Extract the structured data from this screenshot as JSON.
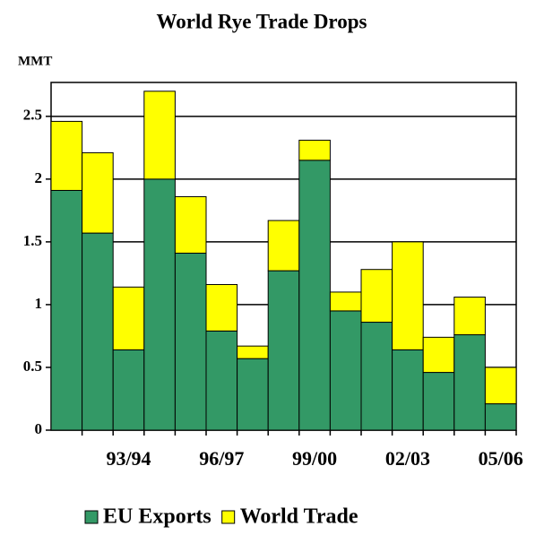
{
  "chart_data": {
    "type": "stacked-bar",
    "title": "World Rye Trade Drops",
    "y_label": "MMT",
    "categories": [
      null,
      null,
      "93/94",
      null,
      null,
      "96/97",
      null,
      null,
      "99/00",
      null,
      null,
      "02/03",
      null,
      null,
      "05/06"
    ],
    "series": [
      {
        "name": "EU Exports",
        "color": "#339966",
        "values": [
          1.91,
          1.57,
          0.64,
          2.0,
          1.41,
          0.79,
          0.57,
          1.27,
          2.15,
          0.95,
          0.86,
          0.64,
          0.46,
          0.76,
          0.21
        ]
      },
      {
        "name": "World Trade",
        "color": "#ffff00",
        "values": [
          0.55,
          0.64,
          0.5,
          0.7,
          0.45,
          0.37,
          0.1,
          0.4,
          0.16,
          0.15,
          0.42,
          0.86,
          0.28,
          0.3,
          0.29
        ]
      }
    ],
    "ylim": [
      0,
      2.77
    ],
    "yticks": [
      0,
      0.5,
      1,
      1.5,
      2,
      2.5
    ],
    "grid": true
  }
}
